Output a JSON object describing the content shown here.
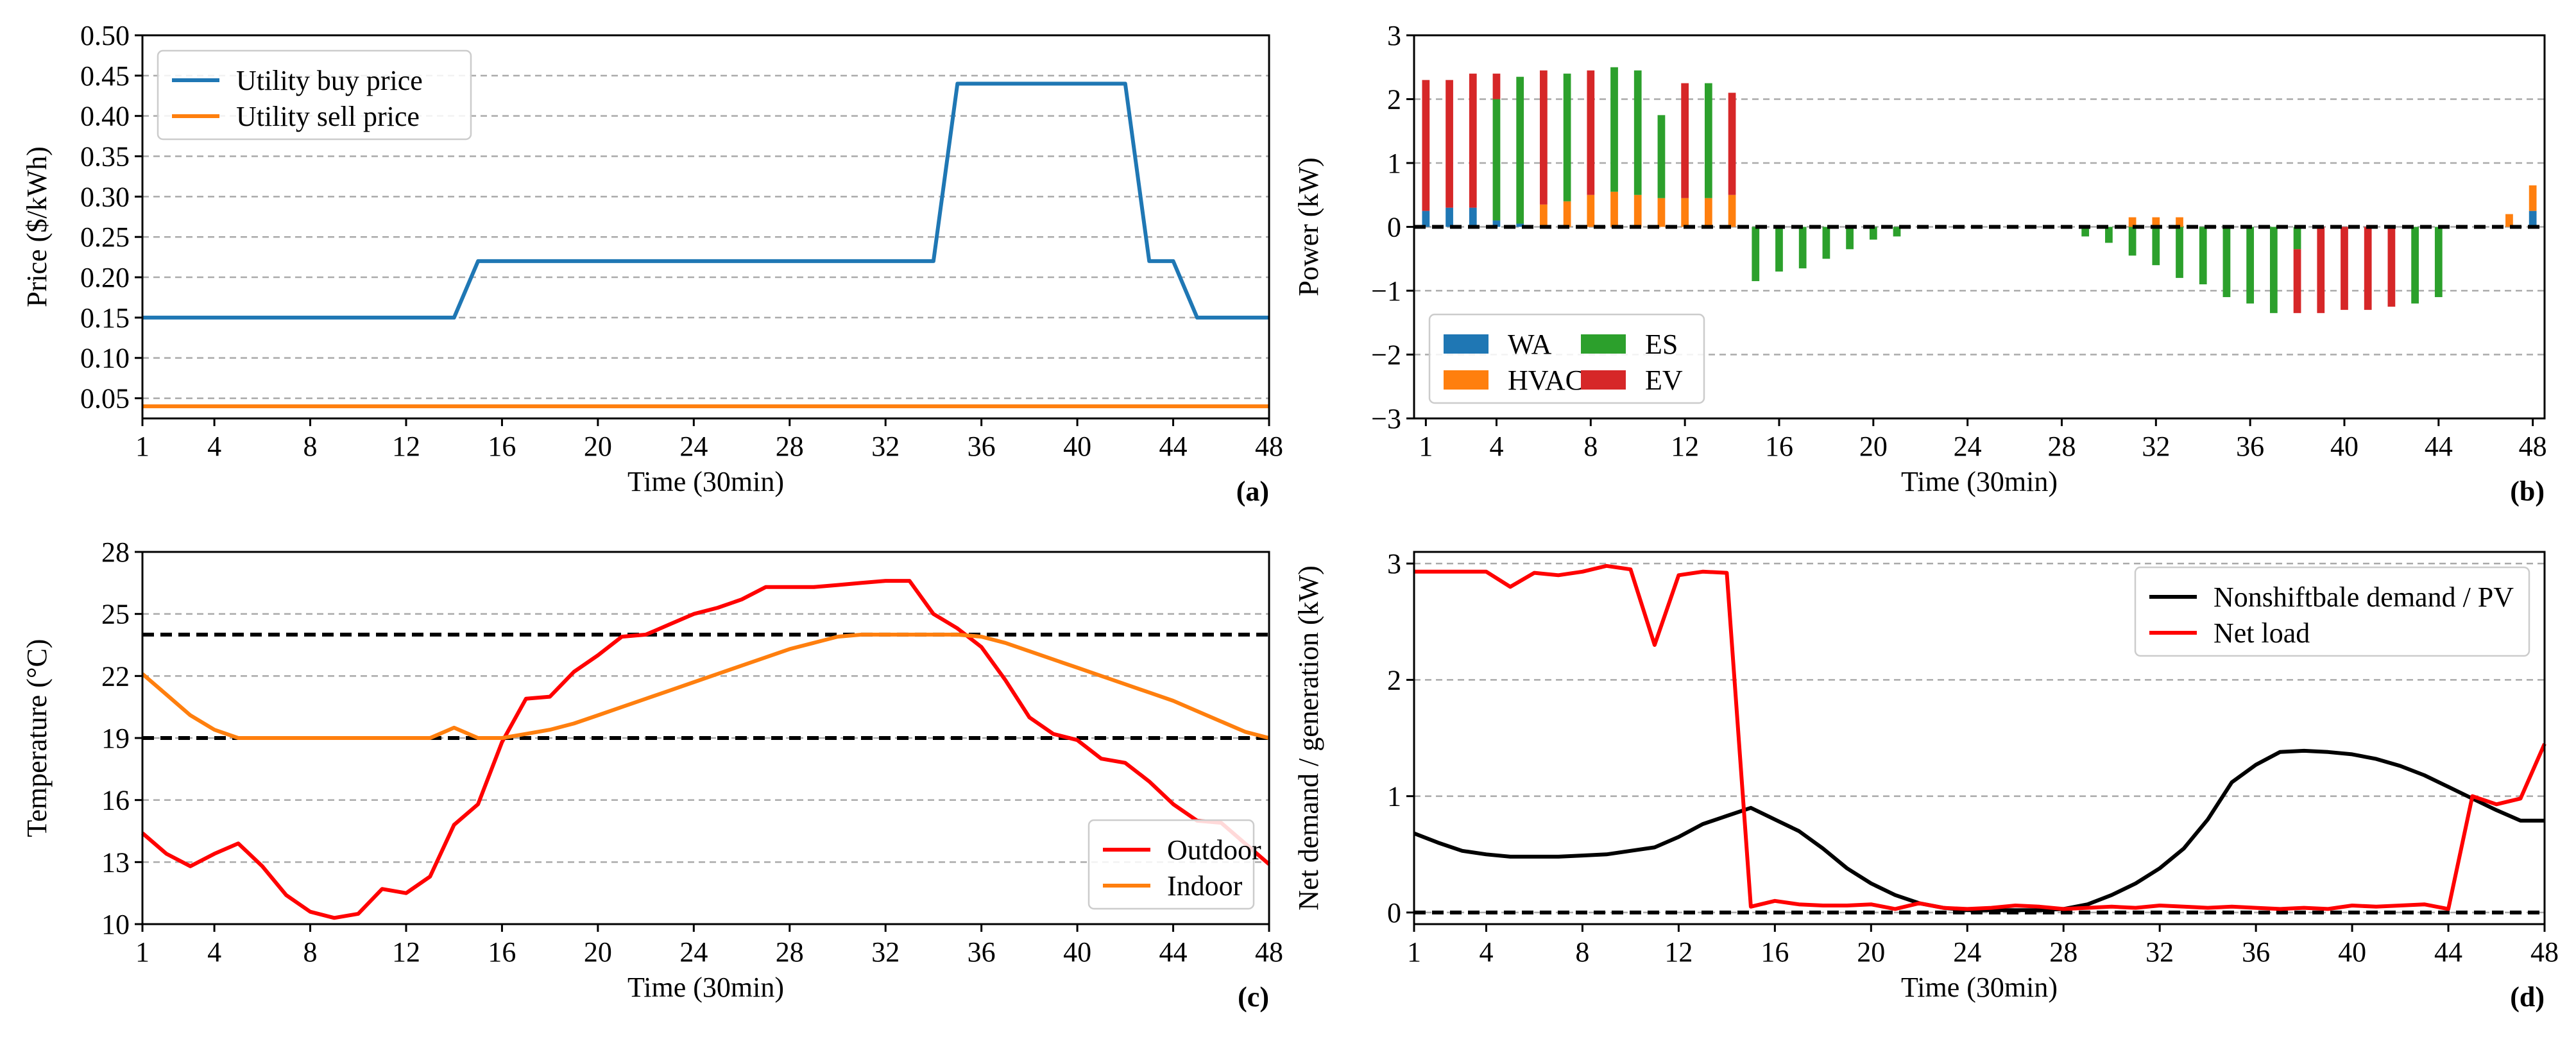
{
  "chart_data": [
    {
      "panel_label": "(a)",
      "type": "line",
      "xlabel": "Time (30min)",
      "ylabel": "Price ($/kWh)",
      "xlim": [
        1,
        48
      ],
      "ylim": [
        0.025,
        0.5
      ],
      "xticks": [
        1,
        4,
        8,
        12,
        16,
        20,
        24,
        28,
        32,
        36,
        40,
        44,
        48
      ],
      "xtick_labels": [
        "1",
        "4",
        "8",
        "12",
        "16",
        "20",
        "24",
        "28",
        "32",
        "36",
        "40",
        "44",
        "48"
      ],
      "yticks": [
        0.05,
        0.1,
        0.15,
        0.2,
        0.25,
        0.3,
        0.35,
        0.4,
        0.45,
        0.5
      ],
      "ytick_labels": [
        "0.05",
        "0.10",
        "0.15",
        "0.20",
        "0.25",
        "0.30",
        "0.35",
        "0.40",
        "0.45",
        "0.50"
      ],
      "grid": true,
      "legend_position": "top-left",
      "series": [
        {
          "name": "Utility buy price",
          "color": "#1f77b4",
          "x": [
            1,
            2,
            3,
            4,
            5,
            6,
            7,
            8,
            9,
            10,
            11,
            12,
            13,
            14,
            15,
            16,
            17,
            18,
            19,
            20,
            21,
            22,
            23,
            24,
            25,
            26,
            27,
            28,
            29,
            30,
            31,
            32,
            33,
            34,
            35,
            36,
            37,
            38,
            39,
            40,
            41,
            42,
            43,
            44,
            45,
            46,
            47,
            48
          ],
          "y": [
            0.15,
            0.15,
            0.15,
            0.15,
            0.15,
            0.15,
            0.15,
            0.15,
            0.15,
            0.15,
            0.15,
            0.15,
            0.15,
            0.15,
            0.22,
            0.22,
            0.22,
            0.22,
            0.22,
            0.22,
            0.22,
            0.22,
            0.22,
            0.22,
            0.22,
            0.22,
            0.22,
            0.22,
            0.22,
            0.22,
            0.22,
            0.22,
            0.22,
            0.22,
            0.44,
            0.44,
            0.44,
            0.44,
            0.44,
            0.44,
            0.44,
            0.44,
            0.22,
            0.22,
            0.15,
            0.15,
            0.15,
            0.15
          ]
        },
        {
          "name": "Utility sell price",
          "color": "#ff7f0e",
          "x": [
            1,
            48
          ],
          "y": [
            0.04,
            0.04
          ]
        }
      ]
    },
    {
      "panel_label": "(b)",
      "type": "bar",
      "stacked": true,
      "xlabel": "Time (30min)",
      "ylabel": "Power (kW)",
      "xlim": [
        0.5,
        48.5
      ],
      "ylim": [
        -3,
        3
      ],
      "xticks": [
        1,
        4,
        8,
        12,
        16,
        20,
        24,
        28,
        32,
        36,
        40,
        44,
        48
      ],
      "xtick_labels": [
        "1",
        "4",
        "8",
        "12",
        "16",
        "20",
        "24",
        "28",
        "32",
        "36",
        "40",
        "44",
        "48"
      ],
      "yticks": [
        -3,
        -2,
        -1,
        0,
        1,
        2,
        3
      ],
      "ytick_labels": [
        "−3",
        "−2",
        "−1",
        "0",
        "1",
        "2",
        "3"
      ],
      "grid": true,
      "legend_position": "bottom-left",
      "legend_columns": 2,
      "x": [
        1,
        2,
        3,
        4,
        5,
        6,
        7,
        8,
        9,
        10,
        11,
        12,
        13,
        14,
        15,
        16,
        17,
        18,
        19,
        20,
        21,
        22,
        23,
        24,
        25,
        26,
        27,
        28,
        29,
        30,
        31,
        32,
        33,
        34,
        35,
        36,
        37,
        38,
        39,
        40,
        41,
        42,
        43,
        44,
        45,
        46,
        47,
        48
      ],
      "series": [
        {
          "name": "WA",
          "color": "#1f77b4",
          "values": [
            0.25,
            0.3,
            0.3,
            0.1,
            0.05,
            0,
            0,
            0,
            0,
            0,
            0,
            0,
            0,
            0,
            0,
            0,
            0,
            0,
            0,
            0,
            0,
            0,
            0,
            0,
            0,
            0,
            0,
            0,
            0,
            0,
            0,
            0,
            0,
            0,
            0,
            0,
            0,
            0,
            0,
            0,
            0,
            0,
            0,
            0,
            0,
            0,
            0,
            0.25
          ]
        },
        {
          "name": "HVAC",
          "color": "#ff7f0e",
          "values": [
            0,
            0,
            0,
            0,
            0,
            0.35,
            0.4,
            0.5,
            0.55,
            0.5,
            0.45,
            0.45,
            0.45,
            0.5,
            0,
            0,
            0,
            0,
            0,
            0,
            0,
            0,
            0,
            0,
            0,
            0.02,
            0,
            0,
            0,
            0,
            0.15,
            0.15,
            0.15,
            0,
            0,
            0,
            0,
            0,
            0,
            0,
            0,
            0,
            0,
            0,
            0,
            0,
            0.2,
            0.4
          ]
        },
        {
          "name": "ES",
          "color": "#2ca02c",
          "values": [
            0,
            0,
            0,
            1.9,
            2.3,
            0,
            2.0,
            0,
            1.95,
            1.95,
            1.3,
            0,
            1.8,
            0,
            -0.85,
            -0.7,
            -0.65,
            -0.5,
            -0.35,
            -0.2,
            -0.15,
            0,
            0,
            0,
            0,
            0,
            0,
            0,
            -0.15,
            -0.25,
            -0.45,
            -0.6,
            -0.8,
            -0.9,
            -1.1,
            -1.2,
            -1.35,
            -0.35,
            0,
            0,
            0,
            0,
            -1.2,
            -1.1,
            0,
            0,
            0,
            0
          ]
        },
        {
          "name": "EV",
          "color": "#d62728",
          "values": [
            2.05,
            2.0,
            2.1,
            0.4,
            0,
            2.1,
            0,
            1.95,
            0,
            0,
            0,
            1.8,
            0,
            1.6,
            0,
            0,
            0,
            0,
            0,
            0,
            0,
            0,
            0,
            0,
            0,
            0,
            0,
            0,
            0,
            0,
            0,
            0,
            0,
            0,
            0,
            0,
            0,
            -1.0,
            -1.35,
            -1.3,
            -1.3,
            -1.25,
            0,
            0,
            0,
            0,
            0,
            0
          ]
        }
      ],
      "reference_line": {
        "y": 0,
        "style": "dashed",
        "color": "#000000"
      }
    },
    {
      "panel_label": "(c)",
      "type": "line",
      "xlabel": "Time (30min)",
      "ylabel": "Temperature (°C)",
      "xlim": [
        1,
        48
      ],
      "ylim": [
        10,
        28
      ],
      "xticks": [
        1,
        4,
        8,
        12,
        16,
        20,
        24,
        28,
        32,
        36,
        40,
        44,
        48
      ],
      "xtick_labels": [
        "1",
        "4",
        "8",
        "12",
        "16",
        "20",
        "24",
        "28",
        "32",
        "36",
        "40",
        "44",
        "48"
      ],
      "yticks": [
        10,
        13,
        16,
        19,
        22,
        25,
        28
      ],
      "ytick_labels": [
        "10",
        "13",
        "16",
        "19",
        "22",
        "25",
        "28"
      ],
      "grid": true,
      "legend_position": "bottom-right",
      "series": [
        {
          "name": "Outdoor",
          "color": "#ff0000",
          "x": [
            1,
            2,
            3,
            4,
            5,
            6,
            7,
            8,
            9,
            10,
            11,
            12,
            13,
            14,
            15,
            16,
            17,
            18,
            19,
            20,
            21,
            22,
            23,
            24,
            25,
            26,
            27,
            28,
            29,
            30,
            31,
            32,
            33,
            34,
            35,
            36,
            37,
            38,
            39,
            40,
            41,
            42,
            43,
            44,
            45,
            46,
            47,
            48
          ],
          "y": [
            14.4,
            13.4,
            12.8,
            13.4,
            13.9,
            12.8,
            11.4,
            10.6,
            10.3,
            10.5,
            11.7,
            11.5,
            12.3,
            14.8,
            15.8,
            18.8,
            20.9,
            21.0,
            22.2,
            23.0,
            23.9,
            24.0,
            24.5,
            25.0,
            25.3,
            25.7,
            26.3,
            26.3,
            26.3,
            26.4,
            26.5,
            26.6,
            26.6,
            25.0,
            24.3,
            23.4,
            21.8,
            20.0,
            19.2,
            18.9,
            18.0,
            17.8,
            16.9,
            15.8,
            15.0,
            14.9,
            13.9,
            12.9
          ]
        },
        {
          "name": "Indoor",
          "color": "#ff7f0e",
          "x": [
            1,
            2,
            3,
            4,
            5,
            6,
            7,
            8,
            9,
            10,
            11,
            12,
            13,
            14,
            15,
            16,
            17,
            18,
            19,
            20,
            21,
            22,
            23,
            24,
            25,
            26,
            27,
            28,
            29,
            30,
            31,
            32,
            33,
            34,
            35,
            36,
            37,
            38,
            39,
            40,
            41,
            42,
            43,
            44,
            45,
            46,
            47,
            48
          ],
          "y": [
            22.1,
            21.1,
            20.1,
            19.4,
            19.0,
            19.0,
            19.0,
            19.0,
            19.0,
            19.0,
            19.0,
            19.0,
            19.0,
            19.5,
            19.0,
            19.0,
            19.2,
            19.4,
            19.7,
            20.1,
            20.5,
            20.9,
            21.3,
            21.7,
            22.1,
            22.5,
            22.9,
            23.3,
            23.6,
            23.9,
            24.0,
            24.0,
            24.0,
            24.0,
            24.0,
            23.9,
            23.6,
            23.2,
            22.8,
            22.4,
            22.0,
            21.6,
            21.2,
            20.8,
            20.3,
            19.8,
            19.3,
            19.0
          ]
        }
      ],
      "reference_lines": [
        {
          "y": 24,
          "style": "dashed",
          "color": "#000000"
        },
        {
          "y": 19,
          "style": "dashed",
          "color": "#000000"
        }
      ]
    },
    {
      "panel_label": "(d)",
      "type": "line",
      "xlabel": "Time (30min)",
      "ylabel": "Net demand / generation (kW)",
      "xlim": [
        1,
        48
      ],
      "ylim": [
        -0.1,
        3.1
      ],
      "xticks": [
        1,
        4,
        8,
        12,
        16,
        20,
        24,
        28,
        32,
        36,
        40,
        44,
        48
      ],
      "xtick_labels": [
        "1",
        "4",
        "8",
        "12",
        "16",
        "20",
        "24",
        "28",
        "32",
        "36",
        "40",
        "44",
        "48"
      ],
      "yticks": [
        0,
        1,
        2,
        3
      ],
      "ytick_labels": [
        "0",
        "1",
        "2",
        "3"
      ],
      "grid": true,
      "legend_position": "top-right",
      "series": [
        {
          "name": "Nonshiftbale demand / PV",
          "color": "#000000",
          "x": [
            1,
            2,
            3,
            4,
            5,
            6,
            7,
            8,
            9,
            10,
            11,
            12,
            13,
            14,
            15,
            16,
            17,
            18,
            19,
            20,
            21,
            22,
            23,
            24,
            25,
            26,
            27,
            28,
            29,
            30,
            31,
            32,
            33,
            34,
            35,
            36,
            37,
            38,
            39,
            40,
            41,
            42,
            43,
            44,
            45,
            46,
            47,
            48
          ],
          "y": [
            0.68,
            0.6,
            0.53,
            0.5,
            0.48,
            0.48,
            0.48,
            0.49,
            0.5,
            0.53,
            0.56,
            0.65,
            0.76,
            0.83,
            0.9,
            0.8,
            0.7,
            0.55,
            0.38,
            0.25,
            0.15,
            0.08,
            0.04,
            0.02,
            0.02,
            0.02,
            0.02,
            0.03,
            0.07,
            0.15,
            0.25,
            0.38,
            0.55,
            0.8,
            1.12,
            1.27,
            1.38,
            1.39,
            1.38,
            1.36,
            1.32,
            1.26,
            1.18,
            1.08,
            0.98,
            0.88,
            0.79,
            0.79
          ]
        },
        {
          "name": "Net load",
          "color": "#ff0000",
          "x": [
            1,
            2,
            3,
            4,
            5,
            6,
            7,
            8,
            9,
            10,
            11,
            12,
            13,
            14,
            15,
            16,
            17,
            18,
            19,
            20,
            21,
            22,
            23,
            24,
            25,
            26,
            27,
            28,
            29,
            30,
            31,
            32,
            33,
            34,
            35,
            36,
            37,
            38,
            39,
            40,
            41,
            42,
            43,
            44,
            45,
            46,
            47,
            48
          ],
          "y": [
            2.93,
            2.93,
            2.93,
            2.93,
            2.8,
            2.92,
            2.9,
            2.93,
            2.98,
            2.95,
            2.3,
            2.9,
            2.93,
            2.92,
            0.05,
            0.1,
            0.07,
            0.06,
            0.06,
            0.07,
            0.03,
            0.08,
            0.04,
            0.03,
            0.04,
            0.06,
            0.05,
            0.03,
            0.04,
            0.05,
            0.04,
            0.06,
            0.05,
            0.04,
            0.05,
            0.04,
            0.03,
            0.04,
            0.03,
            0.06,
            0.05,
            0.06,
            0.07,
            0.03,
            1.0,
            0.93,
            0.98,
            1.45
          ]
        }
      ],
      "reference_line": {
        "y": 0,
        "style": "dashed",
        "color": "#000000"
      }
    }
  ]
}
